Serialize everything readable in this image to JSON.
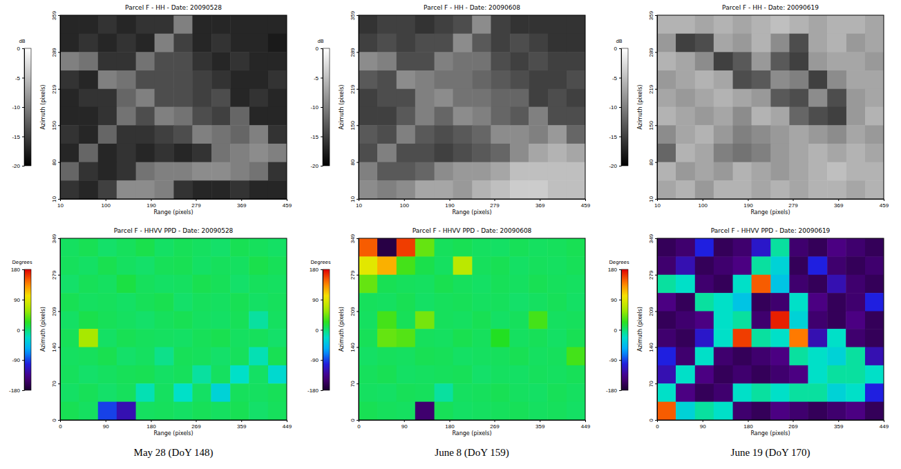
{
  "chart_data": [
    {
      "type": "heatmap",
      "title": "Parcel F - HH - Date: 20090528",
      "x_label": "Range (pixels)",
      "y_label": "Azimuth (pixels)",
      "color": "gray",
      "xlim": [
        10,
        459
      ],
      "ylim": [
        10,
        359
      ],
      "xticks": [
        10,
        100,
        190,
        279,
        369,
        459
      ],
      "yticks": [
        10,
        80,
        150,
        219,
        289,
        359
      ],
      "x_edges": [
        10,
        47,
        85,
        122,
        160,
        197,
        235,
        272,
        310,
        347,
        385,
        422,
        459
      ],
      "y_edges": [
        359,
        324,
        289,
        254,
        219,
        185,
        150,
        115,
        80,
        45,
        10
      ],
      "cells": [
        [
          -17,
          -17,
          -16,
          -17,
          -16,
          -16,
          -10,
          -17,
          -17,
          -17,
          -17,
          -17
        ],
        [
          -17,
          -16,
          -17,
          -16,
          -17,
          -10,
          -15,
          -17,
          -16,
          -17,
          -17,
          -18
        ],
        [
          -10,
          -11,
          -16,
          -16,
          -11,
          -14,
          -14,
          -16,
          -17,
          -16,
          -17,
          -17
        ],
        [
          -16,
          -17,
          -10,
          -11,
          -14,
          -14,
          -14,
          -15,
          -16,
          -17,
          -17,
          -16
        ],
        [
          -17,
          -16,
          -16,
          -12,
          -10,
          -14,
          -14,
          -15,
          -14,
          -17,
          -16,
          -17
        ],
        [
          -17,
          -17,
          -16,
          -11,
          -14,
          -10,
          -11,
          -14,
          -15,
          -12,
          -17,
          -17
        ],
        [
          -16,
          -17,
          -12,
          -16,
          -16,
          -15,
          -14,
          -10,
          -11,
          -12,
          -10,
          -16
        ],
        [
          -17,
          -12,
          -17,
          -16,
          -17,
          -16,
          -17,
          -16,
          -11,
          -10,
          -9,
          -10
        ],
        [
          -12,
          -16,
          -17,
          -16,
          -11,
          -10,
          -10,
          -9,
          -9,
          -10,
          -11,
          -16
        ],
        [
          -16,
          -17,
          -15,
          -9,
          -9,
          -10,
          -16,
          -17,
          -17,
          -16,
          -17,
          -17
        ]
      ],
      "colorbar": {
        "label": "dB",
        "range": [
          -20,
          0
        ],
        "ticks": [
          0,
          -5,
          -10,
          -15,
          -20
        ]
      }
    },
    {
      "type": "heatmap",
      "title": "Parcel F - HH - Date: 20090608",
      "x_label": "Range (pixels)",
      "y_label": "Azimuth (pixels)",
      "color": "gray",
      "xlim": [
        10,
        459
      ],
      "ylim": [
        10,
        359
      ],
      "xticks": [
        10,
        100,
        190,
        279,
        369,
        459
      ],
      "yticks": [
        10,
        80,
        150,
        219,
        289,
        359
      ],
      "x_edges": [
        10,
        47,
        85,
        122,
        160,
        197,
        235,
        272,
        310,
        347,
        385,
        422,
        459
      ],
      "y_edges": [
        359,
        324,
        289,
        254,
        219,
        185,
        150,
        115,
        80,
        45,
        10
      ],
      "cells": [
        [
          -16,
          -15,
          -15,
          -16,
          -15,
          -14,
          -9,
          -15,
          -16,
          -16,
          -16,
          -16
        ],
        [
          -15,
          -14,
          -15,
          -14,
          -14,
          -9,
          -13,
          -15,
          -14,
          -15,
          -16,
          -16
        ],
        [
          -9,
          -10,
          -14,
          -14,
          -10,
          -11,
          -11,
          -14,
          -15,
          -14,
          -15,
          -15
        ],
        [
          -13,
          -14,
          -9,
          -10,
          -11,
          -11,
          -12,
          -13,
          -14,
          -15,
          -15,
          -14
        ],
        [
          -15,
          -14,
          -14,
          -10,
          -9,
          -11,
          -11,
          -12,
          -12,
          -15,
          -14,
          -15
        ],
        [
          -15,
          -15,
          -13,
          -10,
          -12,
          -9,
          -10,
          -12,
          -13,
          -10,
          -14,
          -14
        ],
        [
          -13,
          -14,
          -10,
          -13,
          -14,
          -13,
          -12,
          -9,
          -9,
          -10,
          -8,
          -12
        ],
        [
          -14,
          -10,
          -14,
          -14,
          -15,
          -14,
          -13,
          -12,
          -9,
          -7,
          -6,
          -7
        ],
        [
          -10,
          -13,
          -13,
          -12,
          -9,
          -8,
          -8,
          -7,
          -5,
          -5,
          -5,
          -5
        ],
        [
          -9,
          -10,
          -9,
          -7,
          -7,
          -8,
          -6,
          -5,
          -4,
          -4,
          -5,
          -5
        ]
      ],
      "colorbar": {
        "label": "dB",
        "range": [
          -20,
          0
        ],
        "ticks": [
          0,
          -5,
          -10,
          -15,
          -20
        ]
      }
    },
    {
      "type": "heatmap",
      "title": "Parcel F - HH - Date: 20090619",
      "x_label": "Range (pixels)",
      "y_label": "Azimuth (pixels)",
      "color": "gray",
      "xlim": [
        10,
        459
      ],
      "ylim": [
        10,
        359
      ],
      "xticks": [
        10,
        100,
        190,
        279,
        369,
        459
      ],
      "yticks": [
        10,
        80,
        150,
        219,
        289,
        359
      ],
      "x_edges": [
        10,
        47,
        85,
        122,
        160,
        197,
        235,
        272,
        310,
        347,
        385,
        422,
        459
      ],
      "y_edges": [
        359,
        324,
        289,
        254,
        219,
        185,
        150,
        115,
        80,
        45,
        10
      ],
      "cells": [
        [
          -6,
          -6,
          -7,
          -6,
          -7,
          -6,
          -5,
          -6,
          -7,
          -6,
          -6,
          -7
        ],
        [
          -8,
          -15,
          -14,
          -7,
          -8,
          -6,
          -9,
          -14,
          -7,
          -6,
          -8,
          -7
        ],
        [
          -6,
          -7,
          -9,
          -15,
          -13,
          -8,
          -13,
          -15,
          -8,
          -7,
          -7,
          -8
        ],
        [
          -8,
          -7,
          -6,
          -7,
          -14,
          -13,
          -9,
          -10,
          -15,
          -9,
          -7,
          -7
        ],
        [
          -7,
          -8,
          -7,
          -6,
          -7,
          -8,
          -13,
          -14,
          -9,
          -14,
          -8,
          -7
        ],
        [
          -6,
          -7,
          -8,
          -7,
          -9,
          -6,
          -7,
          -12,
          -14,
          -15,
          -8,
          -6
        ],
        [
          -9,
          -7,
          -6,
          -8,
          -10,
          -9,
          -8,
          -7,
          -8,
          -9,
          -7,
          -8
        ],
        [
          -12,
          -6,
          -7,
          -10,
          -11,
          -10,
          -8,
          -7,
          -6,
          -7,
          -6,
          -7
        ],
        [
          -6,
          -8,
          -7,
          -8,
          -6,
          -7,
          -8,
          -7,
          -6,
          -5,
          -6,
          -6
        ],
        [
          -7,
          -6,
          -8,
          -6,
          -6,
          -7,
          -6,
          -7,
          -6,
          -6,
          -7,
          -6
        ]
      ],
      "colorbar": {
        "label": "dB",
        "range": [
          -20,
          0
        ],
        "ticks": [
          0,
          -5,
          -10,
          -15,
          -20
        ]
      }
    },
    {
      "type": "heatmap",
      "title": "Parcel F - HHVV PPD - Date: 20090528",
      "x_label": "Range (pixels)",
      "y_label": "Azimuth (pixels)",
      "color": "rainbow",
      "xlim": [
        0,
        449
      ],
      "ylim": [
        0,
        349
      ],
      "xticks": [
        0,
        90,
        180,
        269,
        359,
        449
      ],
      "yticks": [
        0,
        70,
        140,
        209,
        279,
        349
      ],
      "x_edges": [
        0,
        37,
        75,
        112,
        150,
        187,
        225,
        262,
        299,
        337,
        374,
        412,
        449
      ],
      "y_edges": [
        349,
        314,
        279,
        244,
        209,
        175,
        140,
        105,
        70,
        35,
        0
      ],
      "cells": [
        [
          5,
          8,
          3,
          6,
          10,
          4,
          7,
          5,
          3,
          8,
          6,
          4
        ],
        [
          6,
          4,
          9,
          5,
          3,
          7,
          8,
          4,
          6,
          5,
          10,
          7
        ],
        [
          3,
          7,
          5,
          12,
          6,
          4,
          5,
          9,
          7,
          3,
          6,
          5
        ],
        [
          8,
          5,
          6,
          4,
          7,
          9,
          3,
          6,
          5,
          8,
          4,
          6
        ],
        [
          4,
          10,
          7,
          5,
          3,
          6,
          8,
          5,
          4,
          7,
          -10,
          5
        ],
        [
          7,
          60,
          4,
          8,
          6,
          5,
          4,
          7,
          9,
          5,
          6,
          3
        ],
        [
          5,
          6,
          9,
          3,
          5,
          -5,
          7,
          6,
          3,
          6,
          -15,
          8
        ],
        [
          6,
          3,
          5,
          7,
          8,
          4,
          6,
          -10,
          5,
          -20,
          4,
          -25
        ],
        [
          4,
          7,
          3,
          6,
          -15,
          5,
          -20,
          4,
          -30,
          6,
          5,
          7
        ],
        [
          8,
          5,
          -90,
          -120,
          5,
          6,
          4,
          7,
          5,
          8,
          3,
          6
        ]
      ],
      "colorbar": {
        "label": "Degrees",
        "range": [
          -180,
          180
        ],
        "ticks": [
          180,
          90,
          0,
          -90,
          -180
        ]
      }
    },
    {
      "type": "heatmap",
      "title": "Parcel F - HHVV PPD - Date: 20090608",
      "x_label": "Range (pixels)",
      "y_label": "Azimuth (pixels)",
      "color": "rainbow",
      "xlim": [
        0,
        449
      ],
      "ylim": [
        0,
        349
      ],
      "xticks": [
        0,
        90,
        180,
        269,
        359,
        449
      ],
      "yticks": [
        0,
        70,
        140,
        209,
        279,
        349
      ],
      "x_edges": [
        0,
        37,
        75,
        112,
        150,
        187,
        225,
        262,
        299,
        337,
        374,
        412,
        449
      ],
      "y_edges": [
        349,
        314,
        279,
        244,
        209,
        175,
        140,
        105,
        70,
        35,
        0
      ],
      "cells": [
        [
          150,
          -170,
          160,
          40,
          6,
          8,
          5,
          4,
          7,
          5,
          6,
          8
        ],
        [
          90,
          120,
          30,
          10,
          5,
          70,
          6,
          8,
          4,
          6,
          5,
          7
        ],
        [
          40,
          8,
          6,
          5,
          9,
          6,
          4,
          7,
          5,
          8,
          6,
          5
        ],
        [
          6,
          5,
          8,
          4,
          6,
          7,
          5,
          6,
          3,
          5,
          7,
          4
        ],
        [
          5,
          30,
          7,
          45,
          6,
          5,
          8,
          4,
          6,
          30,
          5,
          6
        ],
        [
          7,
          40,
          35,
          6,
          5,
          9,
          6,
          20,
          5,
          7,
          4,
          8
        ],
        [
          4,
          6,
          5,
          8,
          7,
          4,
          5,
          6,
          8,
          5,
          6,
          30
        ],
        [
          6,
          8,
          4,
          5,
          6,
          7,
          3,
          5,
          4,
          6,
          5,
          7
        ],
        [
          5,
          4,
          7,
          6,
          -10,
          5,
          6,
          8,
          5,
          4,
          7,
          5
        ],
        [
          8,
          6,
          5,
          -150,
          7,
          4,
          5,
          6,
          7,
          5,
          6,
          4
        ]
      ],
      "colorbar": {
        "label": "Degrees",
        "range": [
          -180,
          180
        ],
        "ticks": [
          180,
          90,
          0,
          -90,
          -180
        ]
      }
    },
    {
      "type": "heatmap",
      "title": "Parcel F - HHVV PPD - Date: 20090619",
      "x_label": "Range (pixels)",
      "y_label": "Azimuth (pixels)",
      "color": "rainbow",
      "xlim": [
        0,
        449
      ],
      "ylim": [
        0,
        349
      ],
      "xticks": [
        0,
        90,
        180,
        269,
        359,
        449
      ],
      "yticks": [
        0,
        70,
        140,
        209,
        279,
        349
      ],
      "x_edges": [
        0,
        37,
        75,
        112,
        150,
        187,
        225,
        262,
        299,
        337,
        374,
        412,
        449
      ],
      "y_edges": [
        349,
        314,
        279,
        244,
        209,
        175,
        140,
        105,
        70,
        35,
        0
      ],
      "cells": [
        [
          -160,
          -150,
          -100,
          -160,
          -150,
          -110,
          -10,
          -150,
          -160,
          -140,
          -150,
          -160
        ],
        [
          -150,
          -120,
          -160,
          -150,
          -140,
          -10,
          -30,
          -160,
          -100,
          -150,
          -160,
          -150
        ],
        [
          -10,
          -20,
          -150,
          -160,
          -20,
          150,
          -40,
          -150,
          -160,
          -120,
          -150,
          -160
        ],
        [
          -140,
          -160,
          -10,
          -20,
          -40,
          -160,
          -150,
          -20,
          -140,
          -160,
          -150,
          -100
        ],
        [
          -160,
          -150,
          -140,
          -20,
          -10,
          -150,
          170,
          -30,
          -150,
          -160,
          -140,
          -160
        ],
        [
          -150,
          -160,
          -110,
          -20,
          160,
          -10,
          -20,
          140,
          -120,
          -20,
          -150,
          -160
        ],
        [
          -100,
          -150,
          -20,
          -150,
          -160,
          -150,
          -140,
          -10,
          -20,
          -30,
          -10,
          -120
        ],
        [
          -120,
          -20,
          -140,
          -160,
          -150,
          -160,
          -150,
          -140,
          -20,
          -10,
          -10,
          -20
        ],
        [
          -20,
          -140,
          -160,
          -150,
          -20,
          -10,
          -20,
          -10,
          -10,
          -30,
          -20,
          -100
        ],
        [
          150,
          -30,
          -10,
          -20,
          -150,
          -160,
          -140,
          -150,
          -160,
          -150,
          -140,
          -160
        ]
      ],
      "colorbar": {
        "label": "Degrees",
        "range": [
          -180,
          180
        ],
        "ticks": [
          180,
          90,
          0,
          -90,
          -180
        ]
      }
    }
  ],
  "captions": [
    "May 28 (DoY 148)",
    "June 8 (DoY 159)",
    "June 19 (DoY 170)"
  ]
}
